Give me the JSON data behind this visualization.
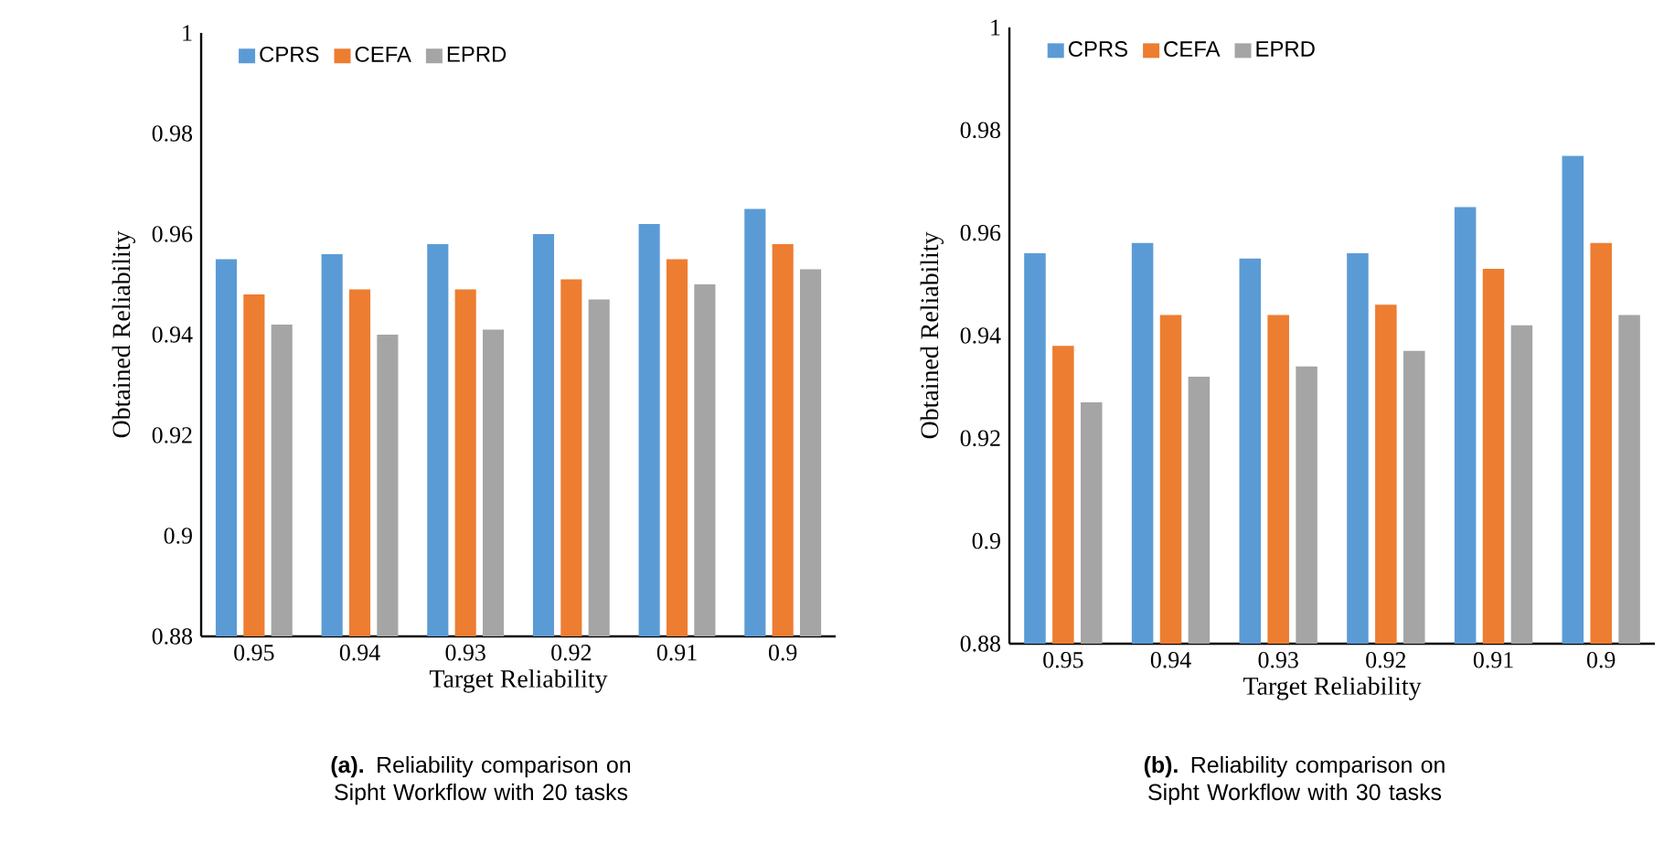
{
  "chart_data": [
    {
      "type": "bar",
      "categories": [
        "0.95",
        "0.94",
        "0.93",
        "0.92",
        "0.91",
        "0.9"
      ],
      "series": [
        {
          "name": "CPRS",
          "color": "#5b9bd5",
          "values": [
            0.955,
            0.956,
            0.958,
            0.96,
            0.962,
            0.965
          ]
        },
        {
          "name": "CEFA",
          "color": "#ed7d31",
          "values": [
            0.948,
            0.949,
            0.949,
            0.951,
            0.955,
            0.958
          ]
        },
        {
          "name": "EPRD",
          "color": "#a5a5a5",
          "values": [
            0.942,
            0.94,
            0.941,
            0.947,
            0.95,
            0.953
          ]
        }
      ],
      "xlabel": "Target Reliability",
      "ylabel": "Obtained Reliability",
      "ylim": [
        0.88,
        1
      ],
      "yticks": [
        0.88,
        0.9,
        0.92,
        0.94,
        0.96,
        0.98,
        1
      ],
      "grid": false,
      "legend": "top left",
      "annotations": [
        "**(a).** Reliability comparison on Sipht Workflow with 20 tasks"
      ]
    },
    {
      "type": "bar",
      "categories": [
        "0.95",
        "0.94",
        "0.93",
        "0.92",
        "0.91",
        "0.9"
      ],
      "series": [
        {
          "name": "CPRS",
          "color": "#5b9bd5",
          "values": [
            0.956,
            0.958,
            0.955,
            0.956,
            0.965,
            0.975
          ]
        },
        {
          "name": "CEFA",
          "color": "#ed7d31",
          "values": [
            0.938,
            0.944,
            0.944,
            0.946,
            0.953,
            0.958
          ]
        },
        {
          "name": "EPRD",
          "color": "#a5a5a5",
          "values": [
            0.927,
            0.932,
            0.934,
            0.937,
            0.942,
            0.944
          ]
        }
      ],
      "xlabel": "Target Reliability",
      "ylabel": "Obtained Reliability",
      "ylim": [
        0.88,
        1
      ],
      "yticks": [
        0.88,
        0.9,
        0.92,
        0.94,
        0.96,
        0.98,
        1
      ],
      "grid": false,
      "legend": "top left",
      "annotations": [
        "**(b).** Reliability comparison on Sipht Workflow with 30 tasks"
      ]
    }
  ]
}
